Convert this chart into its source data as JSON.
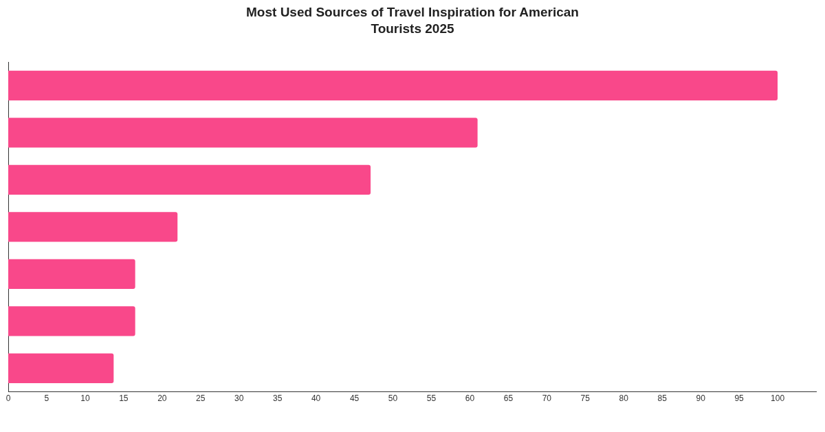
{
  "chart_data": {
    "type": "bar",
    "orientation": "horizontal",
    "title": "Most Used Sources of Travel Inspiration for American Tourists 2025",
    "categories": [
      null,
      null,
      null,
      null,
      null,
      null,
      null
    ],
    "values": [
      100,
      61,
      47.1,
      22,
      16.5,
      16.5,
      13.7
    ],
    "color": "#f9488a",
    "xlim": [
      0,
      105
    ],
    "xticks": [
      0,
      5,
      10,
      15,
      20,
      25,
      30,
      35,
      40,
      45,
      50,
      55,
      60,
      65,
      70,
      75,
      80,
      85,
      90,
      95,
      100
    ],
    "grid": false,
    "legend": false
  }
}
